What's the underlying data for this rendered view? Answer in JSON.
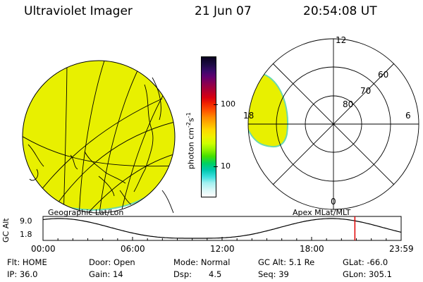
{
  "header": {
    "instrument": "Ultraviolet Imager",
    "date": "21 Jun 07",
    "time": "20:54:08 UT"
  },
  "colorbar": {
    "unit_label": "photon cm-2s-1",
    "unit_main": "photon cm",
    "unit_exp1": "-2",
    "unit_mid": "s",
    "unit_exp2": "-1",
    "ticks": [
      "100",
      "10"
    ],
    "colors": [
      "#0a0020",
      "#1a0a40",
      "#3a0a6a",
      "#600070",
      "#8a0050",
      "#b00030",
      "#d80010",
      "#f02000",
      "#ff5000",
      "#ff8a00",
      "#ffb400",
      "#ffd800",
      "#f0f000",
      "#ccff00",
      "#88f000",
      "#44e000",
      "#00d060",
      "#00c8b0",
      "#40e0e0",
      "#a0f0f0",
      "#d8f8f8",
      "#ffffff"
    ]
  },
  "geo_panel": {
    "title": "Geographic Lat/Lon",
    "fill_color": "#e8f000",
    "edge_color": "#6ad8b0"
  },
  "polar_panel": {
    "title": "Apex MLat/MLT",
    "mlt_labels": {
      "top": "12",
      "bottom": "0",
      "left": "18",
      "right": "6"
    },
    "lat_labels": [
      "60",
      "70",
      "80"
    ]
  },
  "altitude_plot": {
    "ylabel": "GC Alt",
    "yticks": [
      "9.0",
      "1.8"
    ],
    "xticks": [
      "00:00",
      "06:00",
      "12:00",
      "18:00",
      "23:59"
    ],
    "current_time_marker_hours": 20.9,
    "marker_color": "#e00000"
  },
  "status": {
    "flt": "Flt: HOME",
    "door": "Door: Open",
    "mode": "Mode: Normal",
    "gc_alt": "GC Alt: 5.1 Re",
    "glat": "GLat: -66.0",
    "ip": "IP: 36.0",
    "gain": "Gain: 14",
    "dsp_label": "Dsp:",
    "dsp_value": "4.5",
    "seq": "Seq: 39",
    "glon": "GLon: 305.1"
  }
}
